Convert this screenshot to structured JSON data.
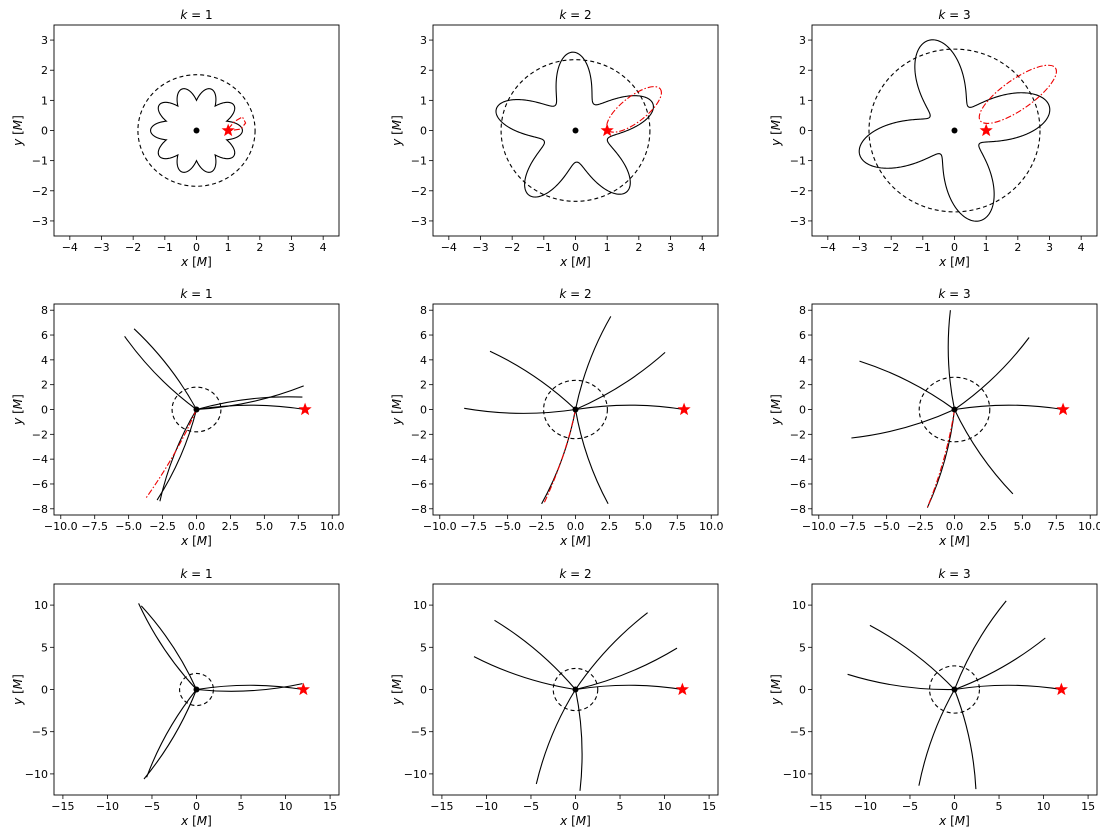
{
  "chart_data": [
    {
      "type": "line",
      "title": "k = 1",
      "xlabel": "x [M]",
      "ylabel": "y [M]",
      "xlim": [
        -4.5,
        4.5
      ],
      "ylim": [
        -3.5,
        3.5
      ],
      "xticks": [
        -4,
        -3,
        -2,
        -1,
        0,
        1,
        2,
        3,
        4
      ],
      "yticks": [
        -3,
        -2,
        -1,
        0,
        1,
        2,
        3
      ],
      "grid": false,
      "orbit": {
        "kind": "rosette",
        "petals": 10,
        "r_min": 1.0,
        "r_max": 1.45,
        "phase_deg": 0
      },
      "escape_radius": 1.85,
      "star": [
        1.0,
        0.0
      ],
      "center": [
        0,
        0
      ],
      "red_segment": {
        "kind": "loop",
        "points": [
          [
            1.0,
            0.05
          ],
          [
            1.2,
            0.3
          ],
          [
            1.45,
            0.45
          ],
          [
            1.55,
            0.25
          ],
          [
            1.4,
            0.05
          ],
          [
            1.1,
            0.0
          ]
        ]
      },
      "series": [],
      "label_symbols": {
        "title_k": "k",
        "title_val": "1"
      }
    },
    {
      "type": "line",
      "title": "k = 2",
      "xlabel": "x [M]",
      "ylabel": "y [M]",
      "xlim": [
        -4.5,
        4.5
      ],
      "ylim": [
        -3.5,
        3.5
      ],
      "xticks": [
        -4,
        -3,
        -2,
        -1,
        0,
        1,
        2,
        3,
        4
      ],
      "yticks": [
        -3,
        -2,
        -1,
        0,
        1,
        2,
        3
      ],
      "grid": false,
      "orbit": {
        "kind": "rosette",
        "petals": 5,
        "r_min": 1.05,
        "r_max": 2.6,
        "phase_deg": 20
      },
      "escape_radius": 2.35,
      "star": [
        1.0,
        0.0
      ],
      "center": [
        0,
        0
      ],
      "red_segment": {
        "kind": "ellipse",
        "center": [
          1.85,
          0.7
        ],
        "a": 1.05,
        "b": 0.42,
        "angle_deg": 38
      },
      "series": []
    },
    {
      "type": "line",
      "title": "k = 3",
      "xlabel": "x [M]",
      "ylabel": "y [M]",
      "xlim": [
        -4.5,
        4.5
      ],
      "ylim": [
        -3.5,
        3.5
      ],
      "xticks": [
        -4,
        -3,
        -2,
        -1,
        0,
        1,
        2,
        3,
        4
      ],
      "yticks": [
        -3,
        -2,
        -1,
        0,
        1,
        2,
        3
      ],
      "grid": false,
      "orbit": {
        "kind": "rosette",
        "petals": 4,
        "r_min": 0.9,
        "r_max": 3.1,
        "phase_deg": 105
      },
      "escape_radius": 2.7,
      "star": [
        1.0,
        0.0
      ],
      "center": [
        0,
        0
      ],
      "red_segment": {
        "kind": "ellipse",
        "center": [
          2.0,
          1.2
        ],
        "a": 1.45,
        "b": 0.5,
        "angle_deg": 35
      },
      "series": []
    },
    {
      "type": "line",
      "title": "k = 1",
      "xlabel": "x [M]",
      "ylabel": "y [M]",
      "xlim": [
        -10.5,
        10.5
      ],
      "ylim": [
        -8.5,
        8.5
      ],
      "xticks": [
        -10.0,
        -7.5,
        -5.0,
        -2.5,
        0.0,
        2.5,
        5.0,
        7.5,
        10.0
      ],
      "yticks": [
        -8,
        -6,
        -4,
        -2,
        0,
        2,
        4,
        6,
        8
      ],
      "grid": false,
      "escape_radius": 1.8,
      "star": [
        8.0,
        0.0
      ],
      "center": [
        0,
        0
      ],
      "spikes": [
        [
          8.0,
          0.0
        ],
        [
          7.9,
          1.9
        ],
        [
          7.8,
          1.0
        ],
        [
          -4.6,
          6.5
        ],
        [
          -5.3,
          5.9
        ],
        [
          -2.7,
          -7.4
        ],
        [
          -2.9,
          -7.3
        ]
      ],
      "red_spike": [
        -3.7,
        -7.1
      ],
      "series": []
    },
    {
      "type": "line",
      "title": "k = 2",
      "xlabel": "x [M]",
      "ylabel": "y [M]",
      "xlim": [
        -10.5,
        10.5
      ],
      "ylim": [
        -8.5,
        8.5
      ],
      "xticks": [
        -10.0,
        -7.5,
        -5.0,
        -2.5,
        0.0,
        2.5,
        5.0,
        7.5,
        10.0
      ],
      "yticks": [
        -8,
        -6,
        -4,
        -2,
        0,
        2,
        4,
        6,
        8
      ],
      "grid": false,
      "escape_radius": 2.35,
      "star": [
        8.0,
        0.0
      ],
      "center": [
        0,
        0
      ],
      "spikes": [
        [
          8.0,
          0.0
        ],
        [
          6.6,
          4.6
        ],
        [
          2.6,
          7.5
        ],
        [
          -6.3,
          4.7
        ],
        [
          -8.2,
          0.1
        ],
        [
          2.4,
          -7.6
        ],
        [
          -2.5,
          -7.6
        ]
      ],
      "red_spike": [
        -2.3,
        -7.5
      ],
      "series": []
    },
    {
      "type": "line",
      "title": "k = 3",
      "xlabel": "x [M]",
      "ylabel": "y [M]",
      "xlim": [
        -10.5,
        10.5
      ],
      "ylim": [
        -8.5,
        8.5
      ],
      "xticks": [
        -10.0,
        -7.5,
        -5.0,
        -2.5,
        0.0,
        2.5,
        5.0,
        7.5,
        10.0
      ],
      "yticks": [
        -8,
        -6,
        -4,
        -2,
        0,
        2,
        4,
        6,
        8
      ],
      "grid": false,
      "escape_radius": 2.6,
      "star": [
        8.0,
        0.0
      ],
      "center": [
        0,
        0
      ],
      "spikes": [
        [
          8.0,
          0.0
        ],
        [
          5.5,
          5.8
        ],
        [
          -0.3,
          8.0
        ],
        [
          -7.0,
          3.9
        ],
        [
          -7.6,
          -2.3
        ],
        [
          4.3,
          -6.8
        ],
        [
          -2.0,
          -7.9
        ]
      ],
      "red_spike": [
        -2.0,
        -7.9
      ],
      "series": []
    },
    {
      "type": "line",
      "title": "k = 1",
      "xlabel": "x [M]",
      "ylabel": "y [M]",
      "xlim": [
        -16,
        16
      ],
      "ylim": [
        -12.5,
        12.5
      ],
      "xticks": [
        -15,
        -10,
        -5,
        0,
        5,
        10,
        15
      ],
      "yticks": [
        -10,
        -5,
        0,
        5,
        10
      ],
      "grid": false,
      "escape_radius": 1.9,
      "star": [
        12.0,
        0.0
      ],
      "center": [
        0,
        0
      ],
      "spikes": [
        [
          12.0,
          0.0
        ],
        [
          11.9,
          0.7
        ],
        [
          -6.5,
          10.2
        ],
        [
          -6.2,
          9.9
        ],
        [
          -5.9,
          -10.6
        ],
        [
          -5.6,
          -10.4
        ]
      ],
      "series": []
    },
    {
      "type": "line",
      "title": "k = 2",
      "xlabel": "x [M]",
      "ylabel": "y [M]",
      "xlim": [
        -16,
        16
      ],
      "ylim": [
        -12.5,
        12.5
      ],
      "xticks": [
        -15,
        -10,
        -5,
        0,
        5,
        10,
        15
      ],
      "yticks": [
        -10,
        -5,
        0,
        5,
        10
      ],
      "grid": false,
      "escape_radius": 2.5,
      "star": [
        12.0,
        0.0
      ],
      "center": [
        0,
        0
      ],
      "spikes": [
        [
          12.0,
          0.0
        ],
        [
          11.4,
          4.9
        ],
        [
          8.1,
          9.1
        ],
        [
          -9.1,
          8.2
        ],
        [
          -11.4,
          3.9
        ],
        [
          -4.4,
          -11.2
        ],
        [
          0.5,
          -12.0
        ]
      ],
      "series": []
    },
    {
      "type": "line",
      "title": "k = 3",
      "xlabel": "x [M]",
      "ylabel": "y [M]",
      "xlim": [
        -16,
        16
      ],
      "ylim": [
        -12.5,
        12.5
      ],
      "xticks": [
        -15,
        -10,
        -5,
        0,
        5,
        10,
        15
      ],
      "yticks": [
        -10,
        -5,
        0,
        5,
        10
      ],
      "grid": false,
      "escape_radius": 2.8,
      "star": [
        12.0,
        0.0
      ],
      "center": [
        0,
        0
      ],
      "spikes": [
        [
          12.0,
          0.0
        ],
        [
          10.2,
          6.1
        ],
        [
          5.8,
          10.5
        ],
        [
          -9.5,
          7.6
        ],
        [
          -12.0,
          1.8
        ],
        [
          -4.0,
          -11.4
        ],
        [
          2.4,
          -11.8
        ]
      ],
      "series": []
    }
  ]
}
